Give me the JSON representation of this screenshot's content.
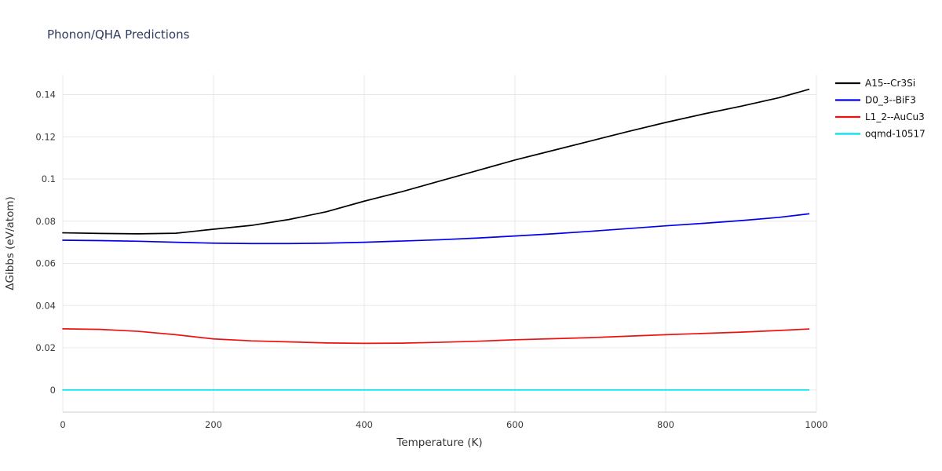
{
  "page": {
    "title": "Phonon/QHA Predictions"
  },
  "colors": {
    "title": "#2f3b5f",
    "grid": "#e8e8e8",
    "axis_line": "#cfcfcf",
    "tick_text": "#3b3b3b"
  },
  "chart_data": {
    "type": "line",
    "title": "Phonon/QHA Predictions",
    "xlabel": "Temperature (K)",
    "ylabel": "ΔGibbs (eV/atom)",
    "xlim": [
      0,
      1000
    ],
    "ylim": [
      -0.0105,
      0.1495
    ],
    "xticks": [
      "0",
      "200",
      "400",
      "600",
      "800",
      "1000"
    ],
    "yticks": [
      "0",
      "0.02",
      "0.04",
      "0.06",
      "0.08",
      "0.1",
      "0.12",
      "0.14"
    ],
    "grid": true,
    "legend_position": "top-right-outside",
    "x": [
      0,
      50,
      100,
      150,
      200,
      250,
      300,
      350,
      400,
      450,
      500,
      550,
      600,
      650,
      700,
      750,
      800,
      850,
      900,
      950,
      990
    ],
    "series": [
      {
        "name": "A15--Cr3Si",
        "color": "#000000",
        "values": [
          0.0745,
          0.0742,
          0.074,
          0.0743,
          0.0762,
          0.078,
          0.0808,
          0.0845,
          0.0895,
          0.094,
          0.099,
          0.104,
          0.109,
          0.1135,
          0.118,
          0.1225,
          0.1268,
          0.1308,
          0.1345,
          0.1385,
          0.1425
        ]
      },
      {
        "name": "D0_3--BiF3",
        "color": "#0000ee",
        "values": [
          0.071,
          0.0708,
          0.0705,
          0.07,
          0.0696,
          0.0694,
          0.0694,
          0.0696,
          0.07,
          0.0706,
          0.0712,
          0.072,
          0.073,
          0.074,
          0.0752,
          0.0765,
          0.0778,
          0.079,
          0.0803,
          0.0818,
          0.0835
        ]
      },
      {
        "name": "L1_2--AuCu3",
        "color": "#ee1111",
        "values": [
          0.029,
          0.0287,
          0.0278,
          0.0262,
          0.0242,
          0.0233,
          0.0228,
          0.0223,
          0.0221,
          0.0222,
          0.0226,
          0.0231,
          0.0238,
          0.0243,
          0.0248,
          0.0255,
          0.0262,
          0.0268,
          0.0274,
          0.0282,
          0.0289
        ]
      },
      {
        "name": "oqmd-10517",
        "color": "#00e0ee",
        "values": [
          0,
          0,
          0,
          0,
          0,
          0,
          0,
          0,
          0,
          0,
          0,
          0,
          0,
          0,
          0,
          0,
          0,
          0,
          0,
          0,
          0
        ]
      }
    ]
  }
}
